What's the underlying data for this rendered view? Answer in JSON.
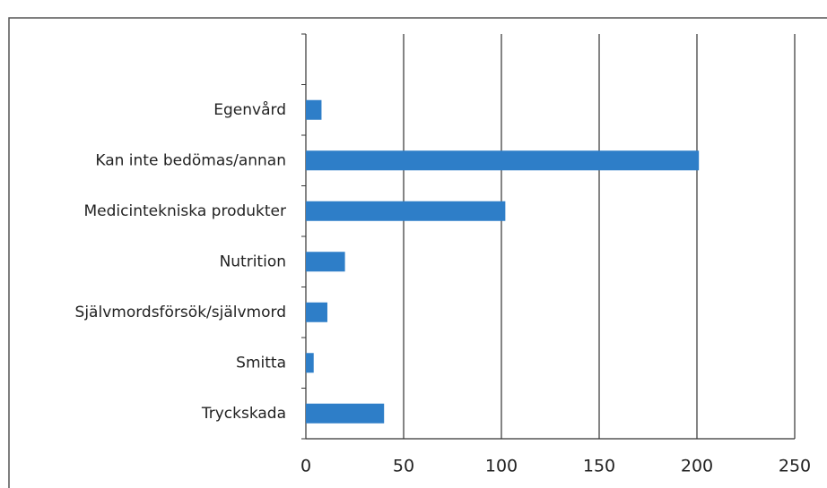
{
  "chart_data": {
    "type": "bar",
    "orientation": "horizontal",
    "categories": [
      "Egenvård",
      "Kan inte bedömas/annan",
      "Medicintekniska produkter",
      "Nutrition",
      "Självmordsförsök/självmord",
      "Smitta",
      "Tryckskada"
    ],
    "values": [
      8,
      201,
      102,
      20,
      11,
      4,
      40
    ],
    "color": "#2e7ec8",
    "xlim": [
      0,
      250
    ],
    "xticks": [
      0,
      50,
      100,
      150,
      200,
      250
    ],
    "grid": true
  }
}
